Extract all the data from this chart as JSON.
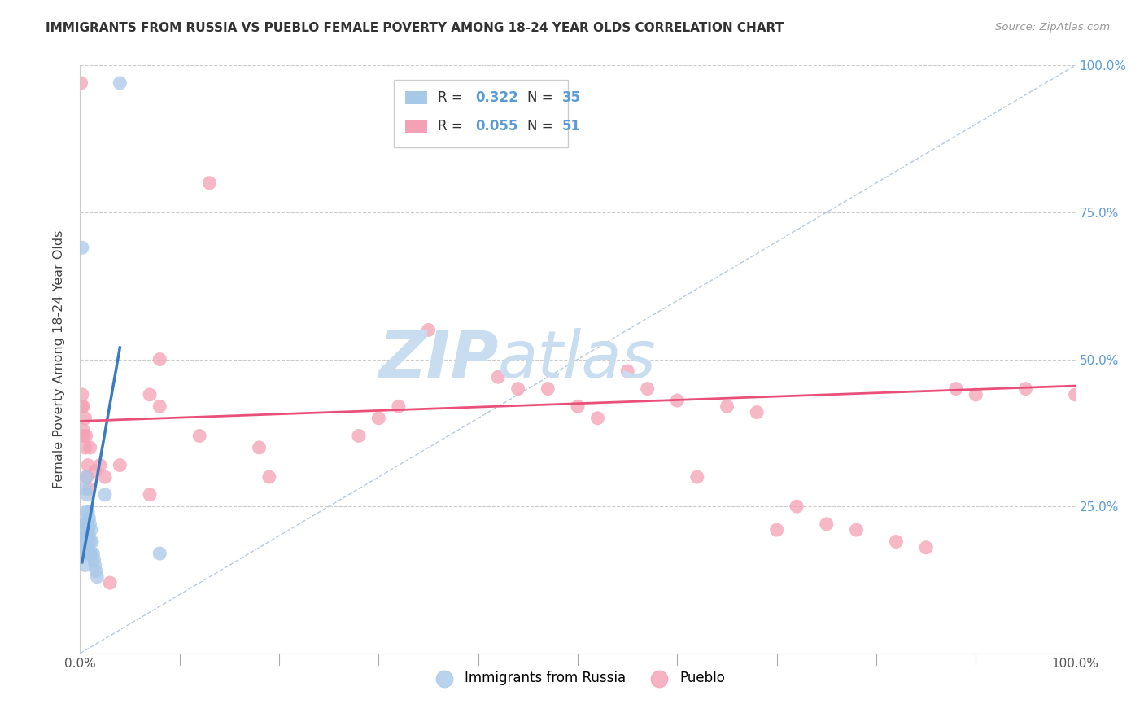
{
  "title": "IMMIGRANTS FROM RUSSIA VS PUEBLO FEMALE POVERTY AMONG 18-24 YEAR OLDS CORRELATION CHART",
  "source": "Source: ZipAtlas.com",
  "ylabel": "Female Poverty Among 18-24 Year Olds",
  "legend_label_blue": "Immigrants from Russia",
  "legend_label_pink": "Pueblo",
  "blue_color": "#a8c8e8",
  "pink_color": "#f4a0b5",
  "blue_line_color": "#3a7abf",
  "pink_line_color": "#e8507a",
  "diagonal_color": "#b0c4d8",
  "watermark_zip": "ZIP",
  "watermark_atlas": "atlas",
  "watermark_color": "#c8ddf0",
  "background_color": "#ffffff",
  "right_tick_color": "#5b9bd5",
  "blue_scatter_x": [
    0.002,
    0.002,
    0.003,
    0.004,
    0.004,
    0.005,
    0.005,
    0.005,
    0.005,
    0.006,
    0.006,
    0.006,
    0.007,
    0.007,
    0.007,
    0.007,
    0.008,
    0.008,
    0.008,
    0.009,
    0.009,
    0.009,
    0.01,
    0.01,
    0.011,
    0.011,
    0.012,
    0.013,
    0.014,
    0.015,
    0.016,
    0.017,
    0.025,
    0.04,
    0.08
  ],
  "blue_scatter_y": [
    0.69,
    0.21,
    0.2,
    0.22,
    0.18,
    0.28,
    0.22,
    0.19,
    0.15,
    0.3,
    0.24,
    0.2,
    0.27,
    0.22,
    0.2,
    0.17,
    0.24,
    0.21,
    0.18,
    0.23,
    0.2,
    0.17,
    0.22,
    0.19,
    0.21,
    0.17,
    0.19,
    0.17,
    0.16,
    0.15,
    0.14,
    0.13,
    0.27,
    0.97,
    0.17
  ],
  "pink_scatter_x": [
    0.001,
    0.002,
    0.002,
    0.003,
    0.003,
    0.004,
    0.005,
    0.005,
    0.006,
    0.007,
    0.008,
    0.009,
    0.01,
    0.015,
    0.02,
    0.025,
    0.03,
    0.04,
    0.07,
    0.07,
    0.08,
    0.08,
    0.12,
    0.13,
    0.18,
    0.19,
    0.28,
    0.3,
    0.32,
    0.35,
    0.42,
    0.44,
    0.47,
    0.5,
    0.52,
    0.55,
    0.57,
    0.6,
    0.62,
    0.65,
    0.68,
    0.7,
    0.72,
    0.75,
    0.78,
    0.82,
    0.85,
    0.88,
    0.9,
    0.95,
    1.0
  ],
  "pink_scatter_y": [
    0.97,
    0.44,
    0.42,
    0.42,
    0.38,
    0.37,
    0.4,
    0.35,
    0.37,
    0.3,
    0.32,
    0.28,
    0.35,
    0.31,
    0.32,
    0.3,
    0.12,
    0.32,
    0.27,
    0.44,
    0.5,
    0.42,
    0.37,
    0.8,
    0.35,
    0.3,
    0.37,
    0.4,
    0.42,
    0.55,
    0.47,
    0.45,
    0.45,
    0.42,
    0.4,
    0.48,
    0.45,
    0.43,
    0.3,
    0.42,
    0.41,
    0.21,
    0.25,
    0.22,
    0.21,
    0.19,
    0.18,
    0.45,
    0.44,
    0.45,
    0.44
  ],
  "blue_trend_x": [
    0.002,
    0.04
  ],
  "blue_trend_y": [
    0.155,
    0.52
  ],
  "pink_trend_x": [
    0.001,
    1.0
  ],
  "pink_trend_y": [
    0.395,
    0.455
  ],
  "xlim": [
    0.0,
    1.0
  ],
  "ylim": [
    0.0,
    1.0
  ]
}
